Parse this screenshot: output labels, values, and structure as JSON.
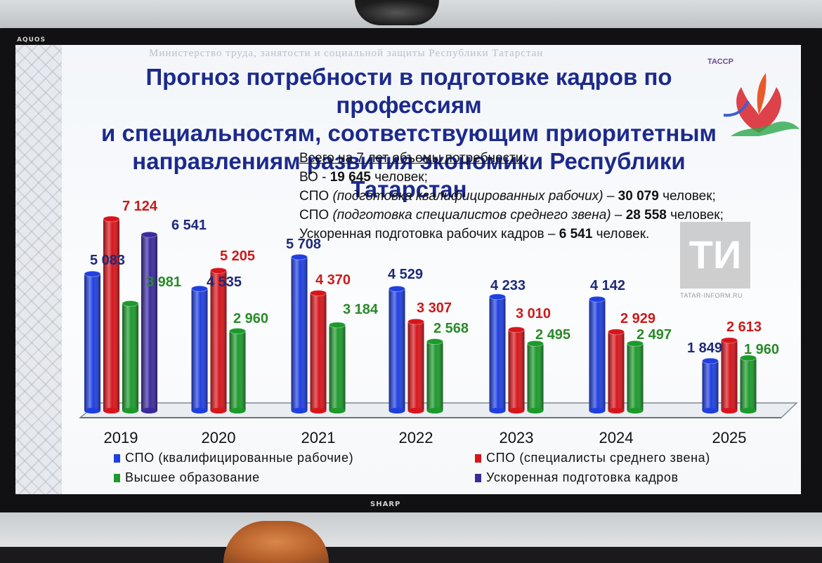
{
  "tv": {
    "brand_top": "AQUOS",
    "brand_bottom": "SHARP"
  },
  "slide": {
    "ministry": "Министерство труда, занятости и социальной защиты Республики Татарстан",
    "logo_text": "ТАССР",
    "title_lines": [
      "Прогноз потребности в подготовке кадров по профессиям",
      "и специальностям, соответствующим приоритетным",
      "направлениям развития экономики Республики Татарстан"
    ],
    "summary": {
      "header": "Всего на 7 лет объемы потребности:",
      "line1": {
        "pre": "ВО  - ",
        "value": "19 645",
        "post": " человек;"
      },
      "line2": {
        "pre": "СПО ",
        "italic": "(подготовка квалифицированных рабочих)",
        "dash": " – ",
        "value": "30 079",
        "post": " человек;"
      },
      "line3": {
        "pre": "СПО ",
        "italic": "(подготовка специалистов среднего звена)",
        "dash": " – ",
        "value": "28 558",
        "post": " человек;"
      },
      "line4": {
        "pre": "Ускоренная подготовка рабочих кадров – ",
        "value": "6 541",
        "post": " человек."
      }
    }
  },
  "watermark": {
    "mark": "ТИ",
    "site": "TATAR-INFORM.RU"
  },
  "chart_data": {
    "type": "bar",
    "style": "3d cylinders",
    "categories": [
      "2019",
      "2020",
      "2021",
      "2022",
      "2023",
      "2024",
      "2025"
    ],
    "series": [
      {
        "name": "СПО (квалифицированные рабочие)",
        "color": "#1f3fe0",
        "label_color": "#1d2a7a",
        "values": [
          5083,
          4535,
          5708,
          4529,
          4233,
          4142,
          1849
        ],
        "labels": [
          "5 083",
          "4 535",
          "5 708",
          "4 529",
          "4 233",
          "4 142",
          "1 849"
        ]
      },
      {
        "name": "СПО (специалисты среднего звена)",
        "color": "#d8151b",
        "label_color": "#cc1a1a",
        "values": [
          7124,
          5205,
          4370,
          3307,
          3010,
          2929,
          2613
        ],
        "labels": [
          "7 124",
          "5 205",
          "4 370",
          "3 307",
          "3 010",
          "2 929",
          "2 613"
        ]
      },
      {
        "name": "Высшее образование",
        "color": "#1c9a2c",
        "label_color": "#2a8a2a",
        "values": [
          3981,
          2960,
          3184,
          2568,
          2495,
          2497,
          1960
        ],
        "labels": [
          "3 981",
          "2 960",
          "3 184",
          "2 568",
          "2 495",
          "2 497",
          "1 960"
        ]
      },
      {
        "name": "Ускоренная подготовка кадров",
        "color": "#3a2a9e",
        "label_color": "#1d2a7a",
        "values": [
          6541,
          null,
          null,
          null,
          null,
          null,
          null
        ],
        "labels": [
          "6 541",
          "",
          "",
          "",
          "",
          "",
          ""
        ]
      }
    ],
    "ylim": [
      0,
      7200
    ],
    "legend_position": "bottom",
    "grid": false
  }
}
